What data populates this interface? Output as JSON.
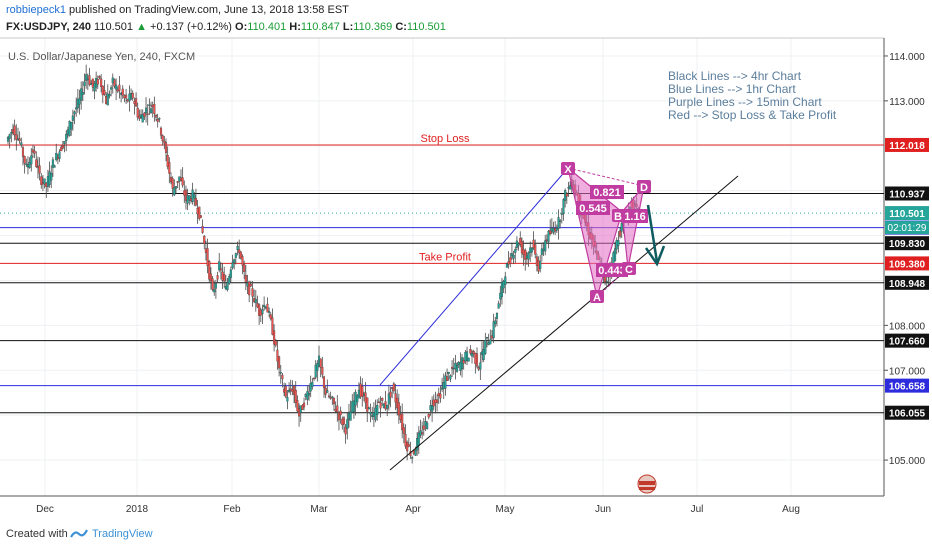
{
  "header": {
    "user": "robbiepeck1",
    "published": "published on TradingView.com, June 13, 2018 13:58 EST",
    "symbol": "FX:USDJPY, 240",
    "price": "110.501",
    "change_arrow": "▲",
    "change": "+0.137 (+0.12%)",
    "o_label": "O:",
    "o_val": "110.401",
    "h_label": "H:",
    "h_val": "110.847",
    "l_label": "L:",
    "l_val": "110.369",
    "c_label": "C:",
    "c_val": "110.501"
  },
  "footer": {
    "created": "Created with",
    "brand": "TradingView"
  },
  "colors": {
    "up": "#26a69a",
    "down": "#ef5350",
    "blue": "#2c2cdc",
    "red": "#e02020",
    "pattern": "#e26bc3"
  },
  "chart_data": {
    "type": "candlestick",
    "title": "U.S. Dollar/Japanese Yen, 240, FXCM",
    "ylim": [
      104.2,
      114.4
    ],
    "price_ticks": [
      "114.000",
      "113.000",
      "108.000",
      "107.000",
      "105.000"
    ],
    "time_labels": [
      "Dec",
      "2018",
      "Feb",
      "Mar",
      "Apr",
      "May",
      "Jun",
      "Jul",
      "Aug"
    ],
    "closes": [
      112.1,
      112.4,
      112.1,
      111.5,
      111.9,
      111.3,
      111.1,
      111.6,
      111.9,
      112.2,
      112.7,
      113.0,
      113.6,
      113.3,
      113.5,
      113.0,
      113.4,
      113.2,
      113.0,
      113.1,
      112.6,
      112.8,
      112.9,
      112.5,
      111.8,
      111.0,
      111.3,
      110.8,
      110.9,
      110.5,
      109.6,
      108.7,
      109.3,
      108.8,
      109.5,
      109.7,
      108.9,
      108.7,
      108.3,
      108.5,
      107.9,
      107.0,
      106.4,
      106.6,
      106.0,
      106.4,
      106.8,
      107.2,
      106.5,
      106.3,
      106.0,
      105.7,
      106.2,
      106.6,
      106.3,
      105.9,
      106.3,
      106.2,
      106.6,
      106.1,
      105.4,
      105.1,
      105.5,
      105.8,
      106.3,
      106.4,
      106.8,
      107.0,
      107.1,
      107.3,
      107.4,
      107.1,
      107.6,
      107.8,
      108.5,
      109.2,
      109.6,
      109.9,
      109.5,
      109.8,
      109.3,
      109.9,
      110.1,
      110.3,
      110.9,
      111.2,
      110.8,
      110.3,
      109.9,
      109.4,
      108.9,
      109.4,
      110.0,
      110.4,
      110.7,
      110.5
    ],
    "levels": [
      {
        "value": 112.018,
        "label": "112.018",
        "kind": "red",
        "text": "Stop Loss"
      },
      {
        "value": 110.937,
        "label": "110.937",
        "kind": "black"
      },
      {
        "value": 110.501,
        "label": "110.501",
        "kind": "current"
      },
      {
        "value": 110.177,
        "label": "110.177",
        "kind": "blue"
      },
      {
        "value": 109.83,
        "label": "109.830",
        "kind": "black"
      },
      {
        "value": 109.38,
        "label": "109.380",
        "kind": "red",
        "text": "Take Profit"
      },
      {
        "value": 108.948,
        "label": "108.948",
        "kind": "black"
      },
      {
        "value": 107.66,
        "label": "107.660",
        "kind": "black"
      },
      {
        "value": 106.658,
        "label": "106.658",
        "kind": "blue"
      },
      {
        "value": 106.055,
        "label": "106.055",
        "kind": "black"
      }
    ],
    "timer": "02:01:29",
    "legend": [
      "Black Lines --> 4hr Chart",
      "Blue Lines --> 1hr Chart",
      "Purple Lines --> 15min Chart",
      "Red --> Stop Loss & Take Profit"
    ],
    "pattern_points": {
      "X": "X",
      "A": "A",
      "B": "B",
      "C": "C",
      "D": "D"
    },
    "ratios": [
      "0.821",
      "0.545",
      "1.16",
      "0.443"
    ]
  }
}
